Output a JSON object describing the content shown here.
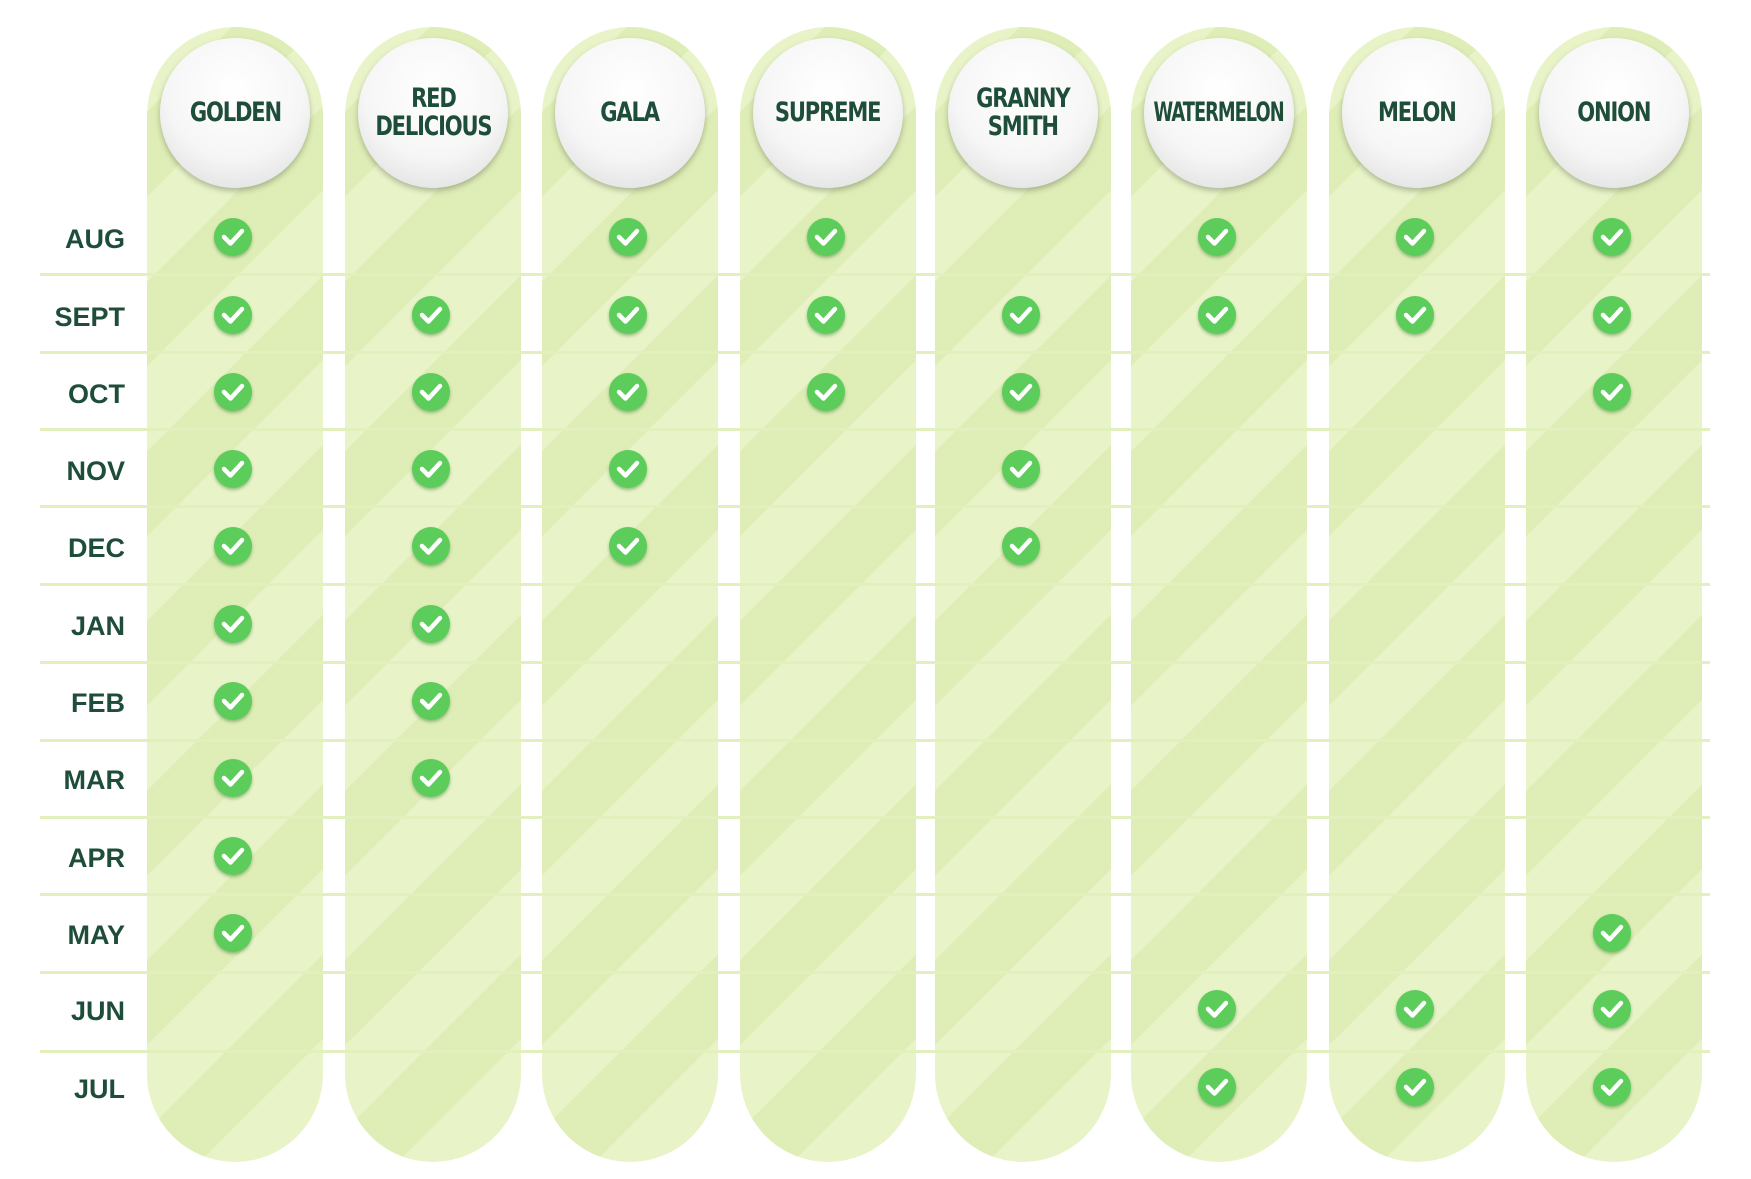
{
  "columns": [
    {
      "key": "golden",
      "label": "GOLDEN"
    },
    {
      "key": "red-delicious",
      "label": "RED\nDELICIOUS"
    },
    {
      "key": "gala",
      "label": "GALA"
    },
    {
      "key": "supreme",
      "label": "SUPREME"
    },
    {
      "key": "granny-smith",
      "label": "GRANNY\nSMITH"
    },
    {
      "key": "watermelon",
      "label": "WATERMELON"
    },
    {
      "key": "melon",
      "label": "MELON"
    },
    {
      "key": "onion",
      "label": "ONION"
    }
  ],
  "months": [
    "AUG",
    "SEPT",
    "OCT",
    "NOV",
    "DEC",
    "JAN",
    "FEB",
    "MAR",
    "APR",
    "MAY",
    "JUN",
    "JUL"
  ],
  "availability": [
    [
      1,
      0,
      1,
      1,
      0,
      1,
      1,
      1
    ],
    [
      1,
      1,
      1,
      1,
      1,
      1,
      1,
      1
    ],
    [
      1,
      1,
      1,
      1,
      1,
      0,
      0,
      1
    ],
    [
      1,
      1,
      1,
      0,
      1,
      0,
      0,
      0
    ],
    [
      1,
      1,
      1,
      0,
      1,
      0,
      0,
      0
    ],
    [
      1,
      1,
      0,
      0,
      0,
      0,
      0,
      0
    ],
    [
      1,
      1,
      0,
      0,
      0,
      0,
      0,
      0
    ],
    [
      1,
      1,
      0,
      0,
      0,
      0,
      0,
      0
    ],
    [
      1,
      0,
      0,
      0,
      0,
      0,
      0,
      0
    ],
    [
      1,
      0,
      0,
      0,
      0,
      0,
      0,
      1
    ],
    [
      0,
      0,
      0,
      0,
      0,
      1,
      1,
      1
    ],
    [
      0,
      0,
      0,
      0,
      0,
      1,
      1,
      1
    ]
  ],
  "icons": {
    "available": "check-circle-icon"
  },
  "colors": {
    "check": "#5ccc5a",
    "column_bg": "#e8f4c8",
    "text": "#1e4d3a"
  }
}
